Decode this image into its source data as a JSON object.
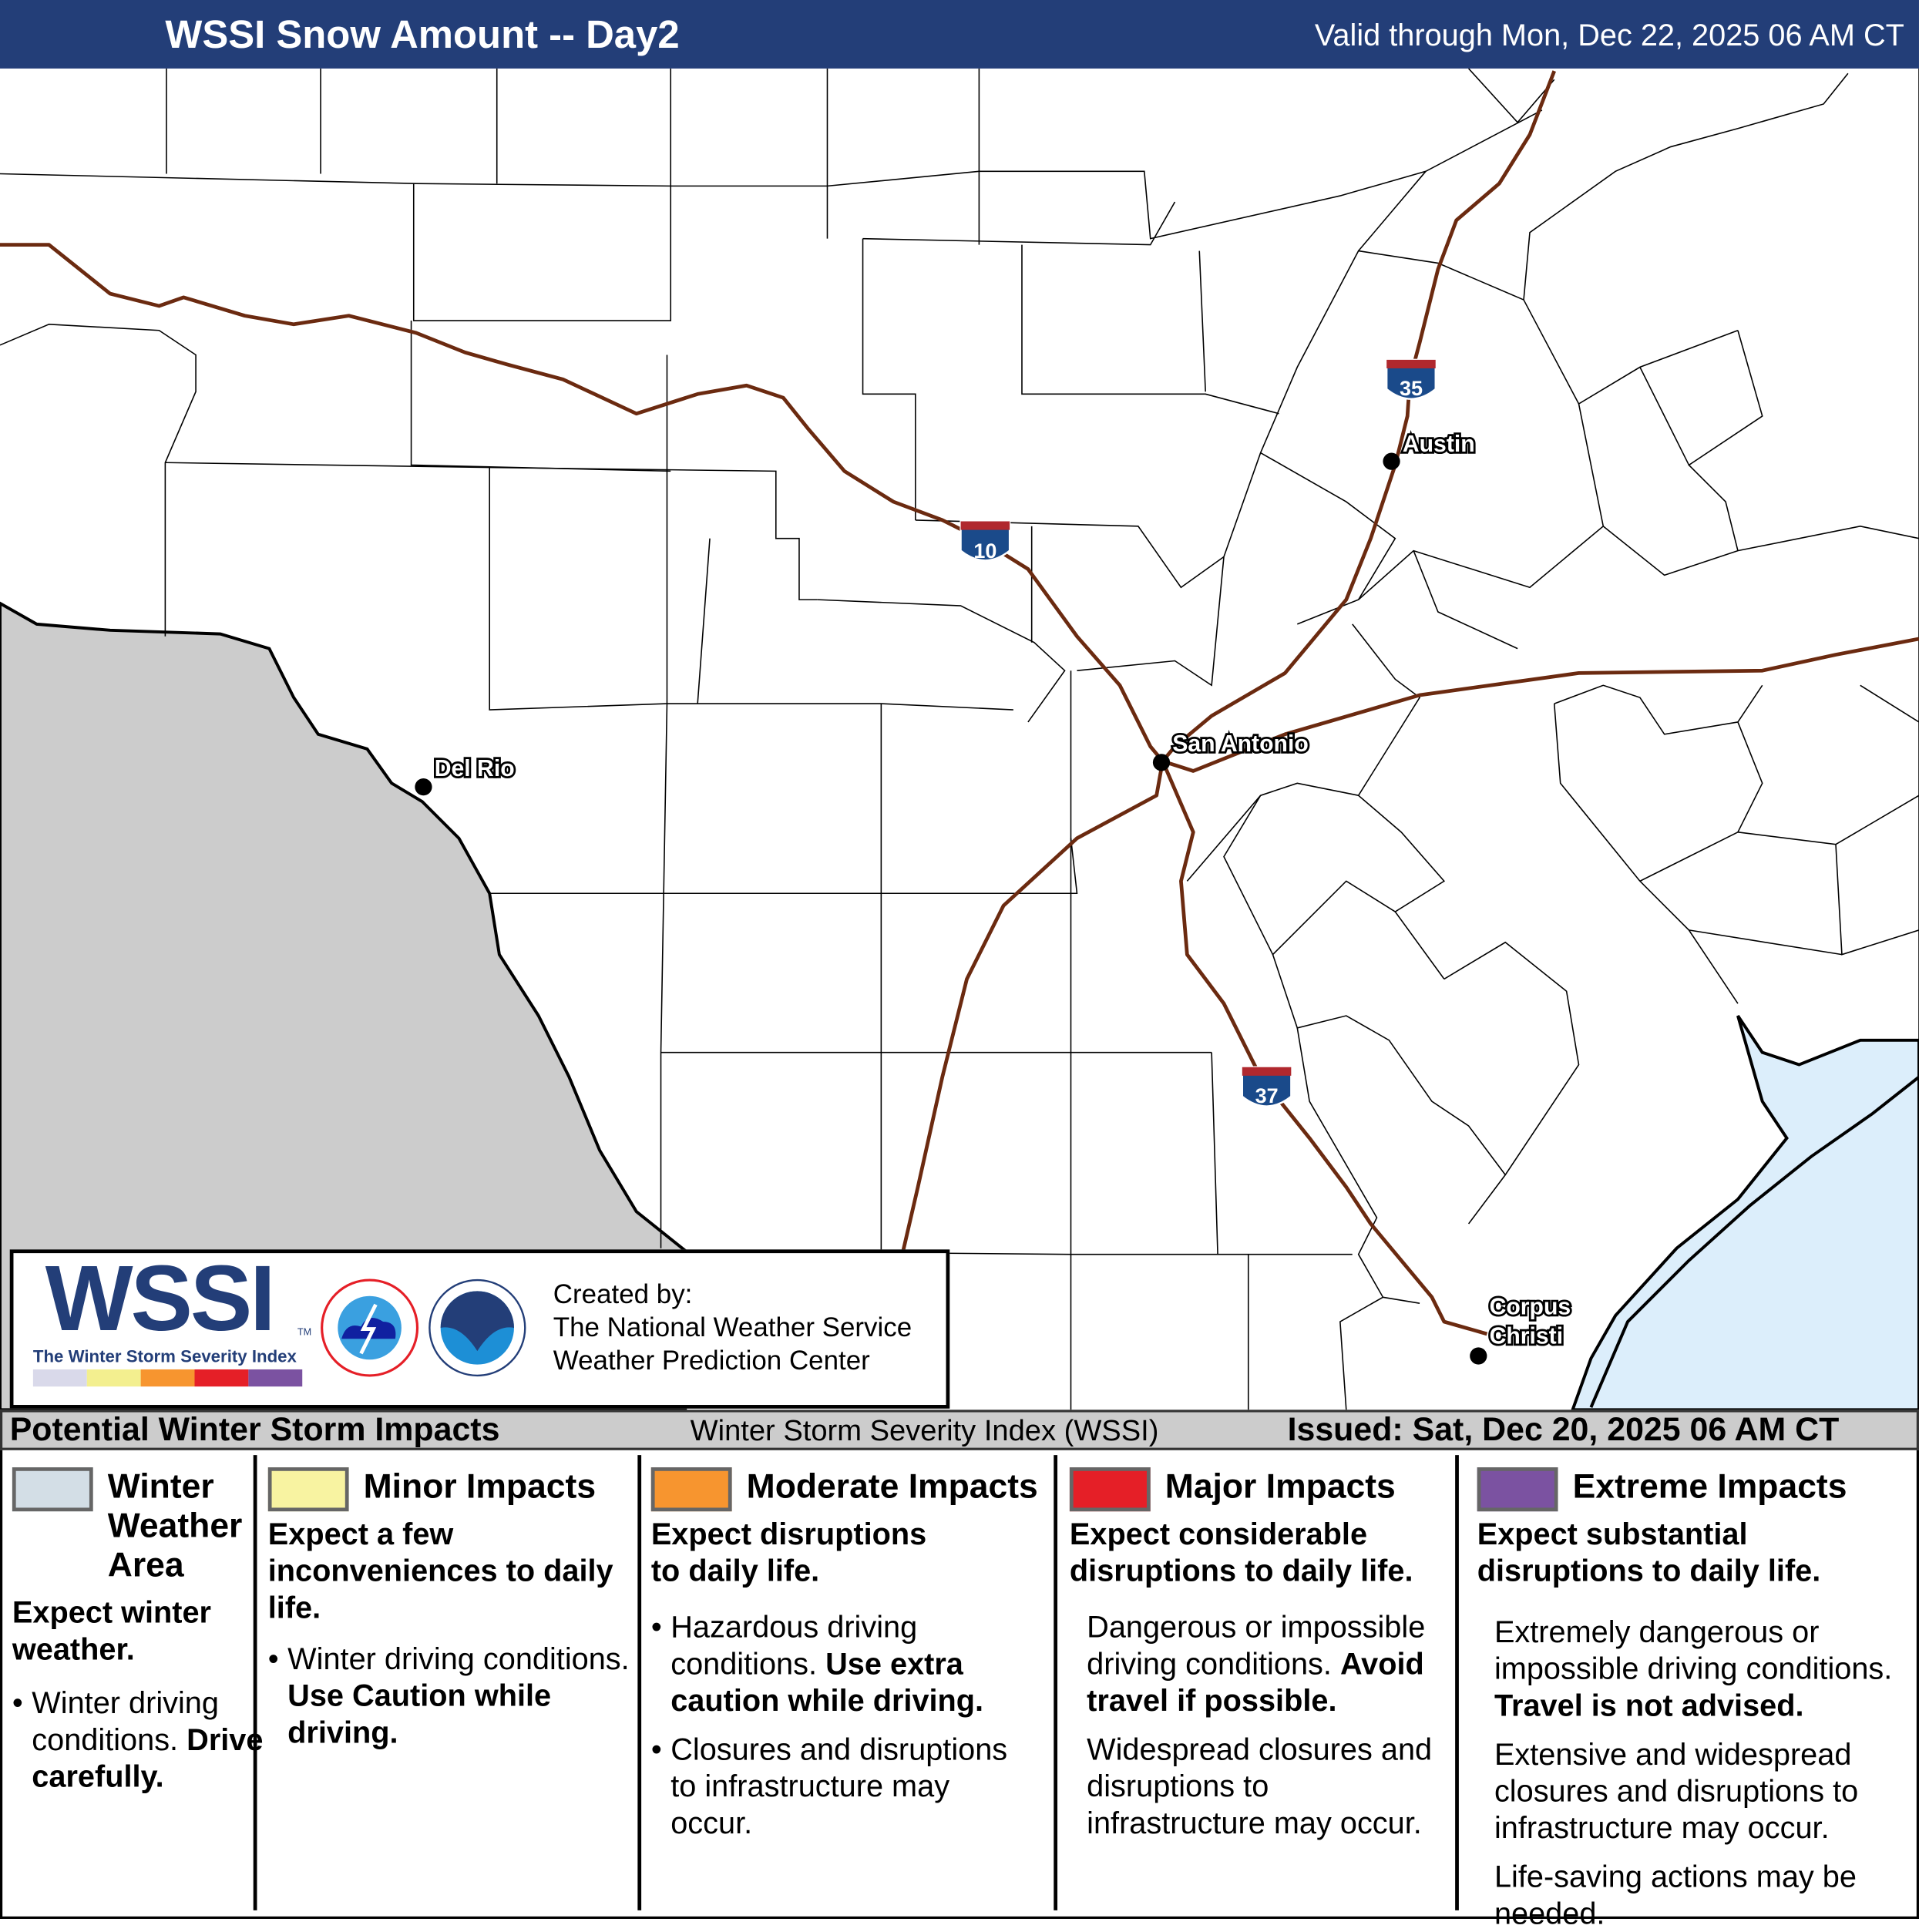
{
  "header": {
    "title": "WSSI Snow Amount -- Day2",
    "valid": "Valid through Mon, Dec 22, 2025 06 AM CT"
  },
  "map": {
    "cities": [
      {
        "name": "Austin"
      },
      {
        "name": "San Antonio"
      },
      {
        "name": "Del Rio"
      },
      {
        "name": "Corpus"
      },
      {
        "name": "Christi"
      }
    ],
    "interstates": [
      "10",
      "35",
      "37"
    ],
    "colors": {
      "mexico": "#cccccc",
      "gulf": "#dceefb",
      "highway": "#6b2a10",
      "shield_blue": "#1a4a8a",
      "shield_red": "#b0282e"
    }
  },
  "logo": {
    "wssi": "WSSI",
    "tm": "TM",
    "tagline": "The Winter Storm Severity Index",
    "scale_colors": [
      "#d9d9ea",
      "#f3ef8f",
      "#f7952f",
      "#e51f27",
      "#7b52a1"
    ],
    "created_by": [
      "Created by:",
      "The National Weather Service",
      "Weather Prediction Center"
    ]
  },
  "strip": {
    "left": "Potential Winter Storm Impacts",
    "center": "Winter Storm Severity Index (WSSI)",
    "right": "Issued: Sat, Dec 20, 2025 06 AM CT"
  },
  "legend": [
    {
      "color": "#d3dee6",
      "title": "Winter Weather Area",
      "subtitle": "Expect winter weather.",
      "b1": "Winter driving conditions.",
      "b1b": "Drive carefully."
    },
    {
      "color": "#f8f3a1",
      "title": "Minor Impacts",
      "subtitle": "Expect a few inconveniences to daily life.",
      "b1": "Winter driving conditions.",
      "b1b": "Use Caution while driving."
    },
    {
      "color": "#f7952f",
      "title": "Moderate Impacts",
      "subtitle": "Expect disruptions to daily life.",
      "b1": "Hazardous driving conditions.",
      "b1b": "Use extra caution while driving.",
      "b2": "Closures and disruptions to infrastructure may occur."
    },
    {
      "color": "#e51f27",
      "title": "Major Impacts",
      "subtitle": "Expect considerable disruptions to daily life.",
      "b1": "Dangerous or impossible driving conditions.",
      "b1b": "Avoid travel if possible.",
      "b2": "Widespread closures and disruptions to infrastructure may occur."
    },
    {
      "color": "#7b52a1",
      "title": "Extreme Impacts",
      "subtitle": "Expect substantial disruptions to daily life.",
      "b1": "Extremely dangerous or impossible driving conditions.",
      "b1b": "Travel is not advised.",
      "b2": "Extensive and widespread closures and disruptions to infrastructure may occur.",
      "b3": "Life-saving actions may be needed."
    }
  ]
}
